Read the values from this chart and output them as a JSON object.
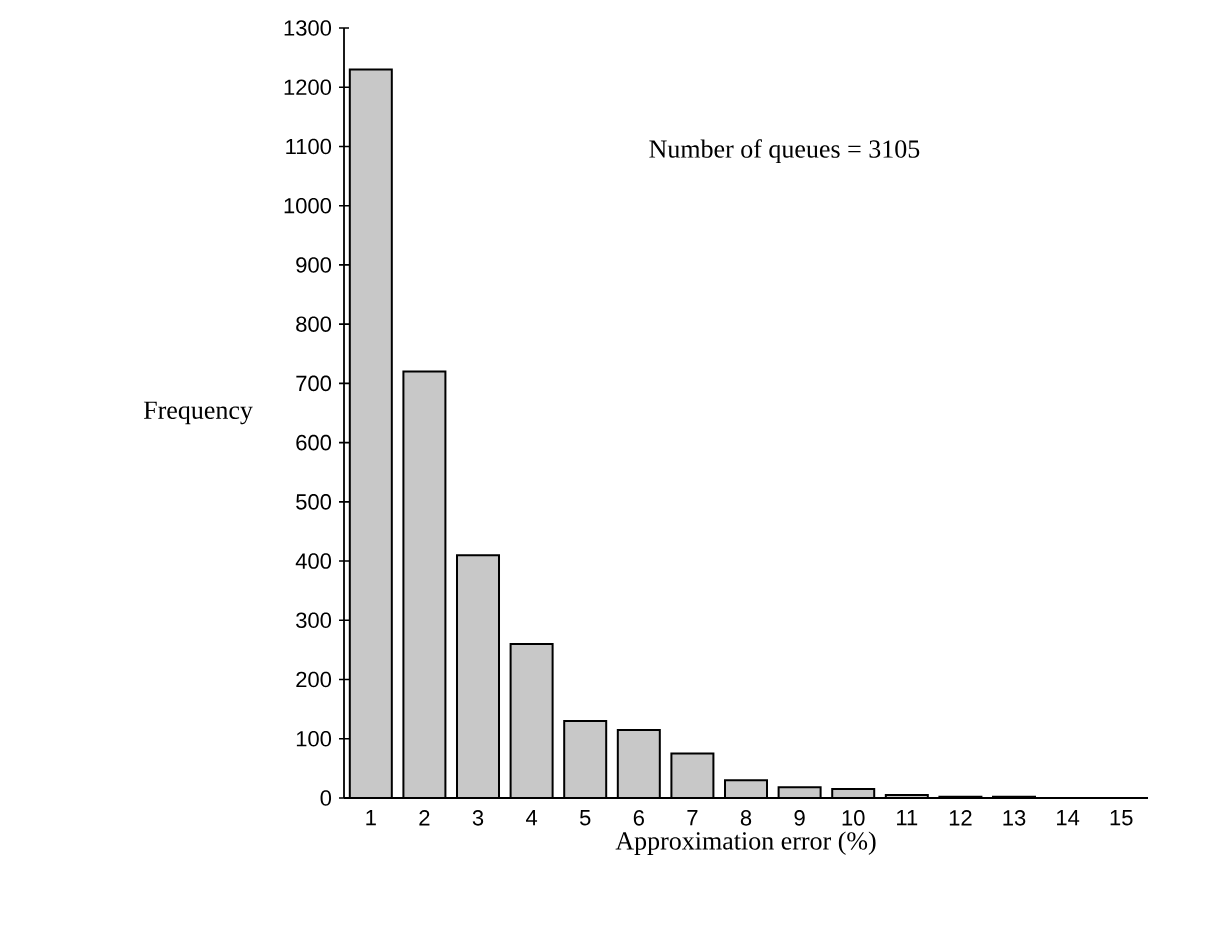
{
  "chart_data": {
    "type": "bar",
    "xlabel": "Approximation error (%)",
    "ylabel": "Frequency",
    "annotations": [
      "Number of queues = 3105"
    ],
    "categories": [
      "1",
      "2",
      "3",
      "4",
      "5",
      "6",
      "7",
      "8",
      "9",
      "10",
      "11",
      "12",
      "13",
      "14",
      "15"
    ],
    "values": [
      1230,
      720,
      410,
      260,
      130,
      115,
      75,
      30,
      18,
      15,
      5,
      2,
      2,
      0,
      0
    ],
    "color": "#c8c8c8",
    "ylim": [
      0,
      1300
    ],
    "yticks": [
      0,
      100,
      200,
      300,
      400,
      500,
      600,
      700,
      800,
      900,
      1000,
      1100,
      1200,
      1300
    ]
  }
}
